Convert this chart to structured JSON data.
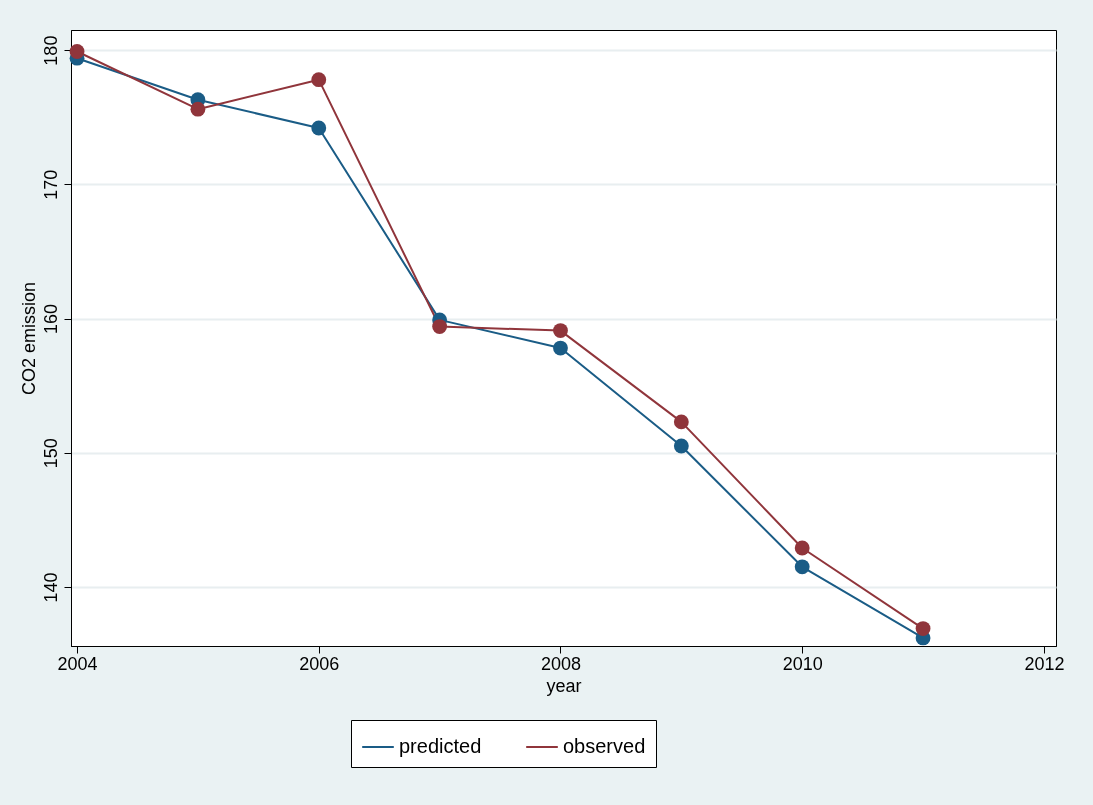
{
  "chart_data": {
    "type": "line",
    "xlabel": "year",
    "ylabel": "CO2 emission",
    "x": [
      2004,
      2005,
      2006,
      2007,
      2008,
      2009,
      2010,
      2011
    ],
    "series": [
      {
        "name": "predicted",
        "color": "#1a5c86",
        "values": [
          179.4,
          176.3,
          174.2,
          159.9,
          157.8,
          150.5,
          141.5,
          136.2
        ]
      },
      {
        "name": "observed",
        "color": "#90353b",
        "values": [
          179.9,
          175.6,
          177.8,
          159.4,
          159.1,
          152.3,
          142.9,
          136.9
        ]
      }
    ],
    "xlim": [
      2003.95,
      2012.1
    ],
    "xticks": [
      2004,
      2006,
      2008,
      2010,
      2012
    ],
    "ylim": [
      135.6,
      181.5
    ],
    "yticks": [
      140,
      150,
      160,
      170,
      180
    ],
    "grid": "y",
    "legend": "bottom",
    "marker": "circle",
    "line_style": "solid"
  }
}
